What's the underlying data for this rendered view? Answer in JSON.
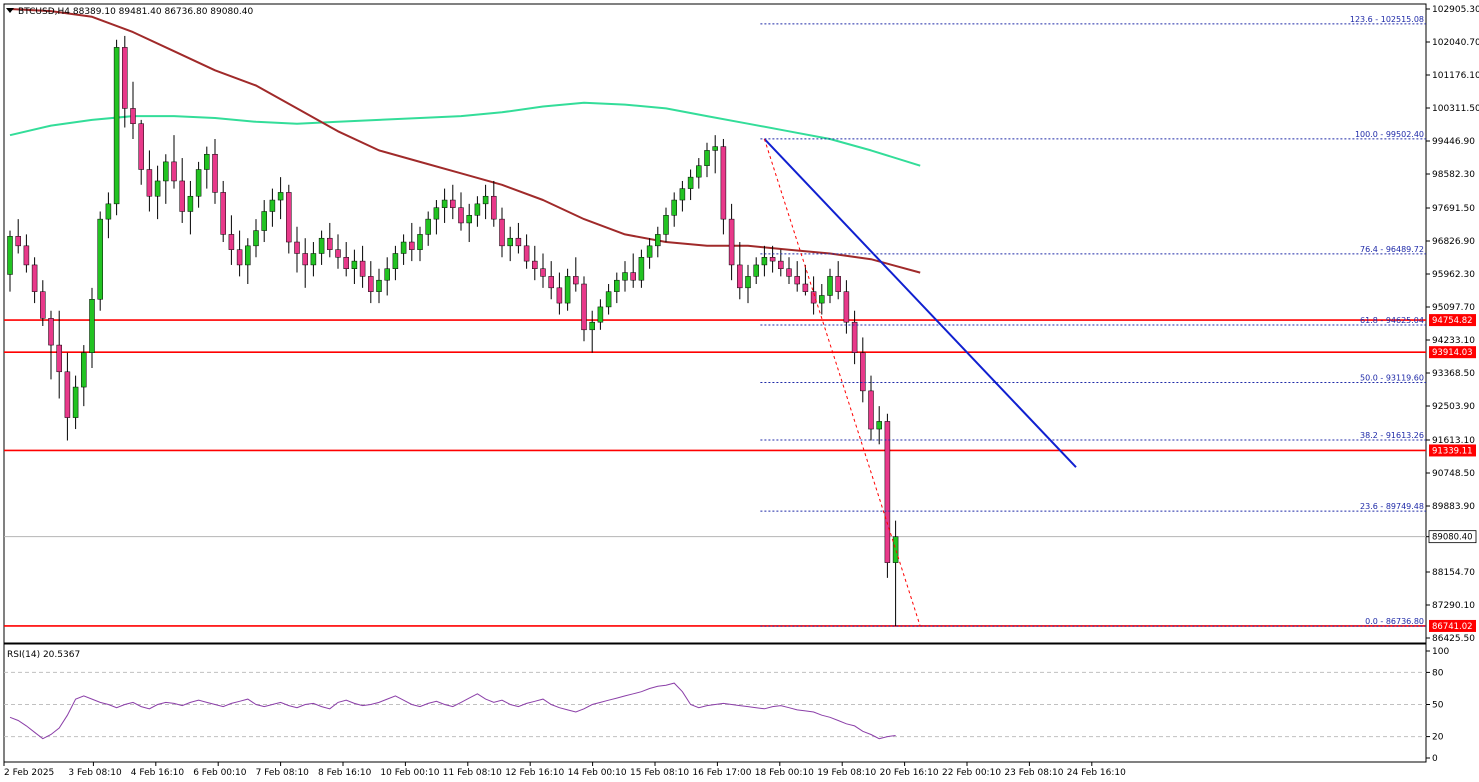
{
  "header": {
    "title": "BTCUSD,H4  88389.10 89481.40 86736.80 89080.40"
  },
  "rsi_header": {
    "title": "RSI(14) 20.5367"
  },
  "colors": {
    "bull": "#22c322",
    "bear": "#e8398a",
    "wick": "#000000",
    "ma_short": "#a02a2a",
    "ma_long": "#33dd99",
    "support": "#ff0000",
    "trend": "#1020d0",
    "fib": "#1f2aa8",
    "rsi": "#8b3fa8"
  },
  "chart_data": [
    {
      "type": "candlestick",
      "symbol": "BTCUSD",
      "timeframe": "H4",
      "ylim": [
        86425.5,
        102905.3
      ],
      "y_ticks": [
        "102905.30",
        "102040.70",
        "101176.10",
        "100311.50",
        "99446.90",
        "98582.30",
        "97691.50",
        "96826.90",
        "95962.30",
        "95097.70",
        "94233.10",
        "93368.50",
        "92503.90",
        "91613.10",
        "90748.50",
        "89883.90",
        "89080.40",
        "88154.70",
        "87290.10",
        "86425.50"
      ],
      "x_ticks": [
        "2 Feb 2025",
        "3 Feb 08:10",
        "4 Feb 16:10",
        "6 Feb 00:10",
        "7 Feb 08:10",
        "8 Feb 16:10",
        "10 Feb 00:10",
        "11 Feb 08:10",
        "12 Feb 16:10",
        "14 Feb 00:10",
        "15 Feb 08:10",
        "16 Feb 17:00",
        "18 Feb 00:10",
        "19 Feb 08:10",
        "20 Feb 16:10",
        "22 Feb 00:10",
        "23 Feb 08:10",
        "24 Feb 16:10"
      ],
      "current_price": "89080.40",
      "support_levels": [
        {
          "value": 94754.82,
          "label": "94754.82"
        },
        {
          "value": 93914.03,
          "label": "93914.03"
        },
        {
          "value": 91339.11,
          "label": "91339.11"
        },
        {
          "value": 86741.02,
          "label": "86741.02"
        }
      ],
      "fib_levels": [
        {
          "value": 102515.08,
          "label": "123.6 - 102515.08"
        },
        {
          "value": 99502.4,
          "label": "100.0 - 99502.40"
        },
        {
          "value": 96489.72,
          "label": "76.4 - 96489.72"
        },
        {
          "value": 94625.04,
          "label": "61.8 - 94625.04"
        },
        {
          "value": 93119.6,
          "label": "50.0 - 93119.60"
        },
        {
          "value": 91613.26,
          "label": "38.2 - 91613.26"
        },
        {
          "value": 89749.48,
          "label": "23.6 - 89749.48"
        },
        {
          "value": 86736.8,
          "label": "0.0 - 86736.80"
        }
      ],
      "candles": [
        [
          95950,
          97100,
          95500,
          96950
        ],
        [
          96950,
          97400,
          96500,
          96700
        ],
        [
          96700,
          97000,
          96000,
          96200
        ],
        [
          96200,
          96400,
          95200,
          95500
        ],
        [
          95500,
          95800,
          94600,
          94800
        ],
        [
          94800,
          95000,
          93200,
          94100
        ],
        [
          94100,
          95000,
          92700,
          93400
        ],
        [
          93400,
          93900,
          91600,
          92200
        ],
        [
          92200,
          93300,
          91900,
          93000
        ],
        [
          93000,
          94100,
          92500,
          93900
        ],
        [
          93900,
          95600,
          93500,
          95300
        ],
        [
          95300,
          97600,
          95000,
          97400
        ],
        [
          97400,
          98100,
          96900,
          97800
        ],
        [
          97800,
          102100,
          97500,
          101900
        ],
        [
          101900,
          102200,
          99800,
          100300
        ],
        [
          100300,
          101000,
          99500,
          99900
        ],
        [
          99900,
          100000,
          98300,
          98700
        ],
        [
          98700,
          99200,
          97600,
          98000
        ],
        [
          98000,
          98800,
          97400,
          98400
        ],
        [
          98400,
          99100,
          97800,
          98900
        ],
        [
          98900,
          99600,
          98200,
          98400
        ],
        [
          98400,
          99000,
          97300,
          97600
        ],
        [
          97600,
          98400,
          97000,
          98000
        ],
        [
          98000,
          98900,
          97700,
          98700
        ],
        [
          98700,
          99300,
          98200,
          99100
        ],
        [
          99100,
          99500,
          97800,
          98100
        ],
        [
          98100,
          98400,
          96800,
          97000
        ],
        [
          97000,
          97500,
          96200,
          96600
        ],
        [
          96600,
          97100,
          95900,
          96200
        ],
        [
          96200,
          96900,
          95700,
          96700
        ],
        [
          96700,
          97400,
          96400,
          97100
        ],
        [
          97100,
          97900,
          96800,
          97600
        ],
        [
          97600,
          98200,
          97200,
          97900
        ],
        [
          97900,
          98500,
          97400,
          98100
        ],
        [
          98100,
          98300,
          96500,
          96800
        ],
        [
          96800,
          97200,
          96000,
          96500
        ],
        [
          96500,
          96900,
          95600,
          96200
        ],
        [
          96200,
          96800,
          95900,
          96500
        ],
        [
          96500,
          97100,
          96200,
          96900
        ],
        [
          96900,
          97300,
          96400,
          96600
        ],
        [
          96600,
          97000,
          96100,
          96400
        ],
        [
          96400,
          96800,
          95900,
          96100
        ],
        [
          96100,
          96600,
          95700,
          96300
        ],
        [
          96300,
          96700,
          95600,
          95900
        ],
        [
          95900,
          96300,
          95200,
          95500
        ],
        [
          95500,
          96100,
          95200,
          95800
        ],
        [
          95800,
          96400,
          95400,
          96100
        ],
        [
          96100,
          96700,
          95800,
          96500
        ],
        [
          96500,
          97000,
          96200,
          96800
        ],
        [
          96800,
          97300,
          96300,
          96600
        ],
        [
          96600,
          97200,
          96300,
          97000
        ],
        [
          97000,
          97600,
          96700,
          97400
        ],
        [
          97400,
          97900,
          97000,
          97700
        ],
        [
          97700,
          98200,
          97300,
          97900
        ],
        [
          97900,
          98300,
          97400,
          97700
        ],
        [
          97700,
          98100,
          97100,
          97300
        ],
        [
          97300,
          97800,
          96800,
          97500
        ],
        [
          97500,
          98000,
          97200,
          97800
        ],
        [
          97800,
          98300,
          97400,
          98000
        ],
        [
          98000,
          98400,
          97200,
          97400
        ],
        [
          97400,
          97700,
          96400,
          96700
        ],
        [
          96700,
          97200,
          96300,
          96900
        ],
        [
          96900,
          97300,
          96500,
          96700
        ],
        [
          96700,
          97000,
          96100,
          96300
        ],
        [
          96300,
          96700,
          95800,
          96100
        ],
        [
          96100,
          96500,
          95600,
          95900
        ],
        [
          95900,
          96300,
          95300,
          95600
        ],
        [
          95600,
          96000,
          94900,
          95200
        ],
        [
          95200,
          96100,
          95000,
          95900
        ],
        [
          95900,
          96400,
          95500,
          95700
        ],
        [
          95700,
          95900,
          94200,
          94500
        ],
        [
          94500,
          95000,
          93900,
          94700
        ],
        [
          94700,
          95300,
          94500,
          95100
        ],
        [
          95100,
          95700,
          94900,
          95500
        ],
        [
          95500,
          96000,
          95200,
          95800
        ],
        [
          95800,
          96300,
          95500,
          96000
        ],
        [
          96000,
          96500,
          95600,
          95800
        ],
        [
          95800,
          96600,
          95600,
          96400
        ],
        [
          96400,
          96900,
          96100,
          96700
        ],
        [
          96700,
          97200,
          96400,
          97000
        ],
        [
          97000,
          97700,
          96800,
          97500
        ],
        [
          97500,
          98100,
          97200,
          97900
        ],
        [
          97900,
          98400,
          97600,
          98200
        ],
        [
          98200,
          98700,
          97900,
          98500
        ],
        [
          98500,
          99000,
          98200,
          98800
        ],
        [
          98800,
          99400,
          98500,
          99200
        ],
        [
          99200,
          99600,
          98600,
          99300
        ],
        [
          99300,
          99500,
          97000,
          97400
        ],
        [
          97400,
          97800,
          95800,
          96200
        ],
        [
          96200,
          96800,
          95300,
          95600
        ],
        [
          95600,
          96200,
          95200,
          95900
        ],
        [
          95900,
          96400,
          95700,
          96200
        ],
        [
          96200,
          96700,
          95900,
          96400
        ],
        [
          96400,
          96700,
          96000,
          96300
        ],
        [
          96300,
          96600,
          95900,
          96100
        ],
        [
          96100,
          96400,
          95700,
          95900
        ],
        [
          95900,
          96300,
          95500,
          95700
        ],
        [
          95700,
          96200,
          95400,
          95500
        ],
        [
          95500,
          95900,
          94900,
          95200
        ],
        [
          95200,
          95700,
          94900,
          95400
        ],
        [
          95400,
          96100,
          95200,
          95900
        ],
        [
          95900,
          96300,
          95300,
          95500
        ],
        [
          95500,
          95800,
          94400,
          94700
        ],
        [
          94700,
          95000,
          93600,
          93900
        ],
        [
          93900,
          94300,
          92600,
          92900
        ],
        [
          92900,
          93300,
          91600,
          91900
        ],
        [
          91900,
          92500,
          91500,
          92100
        ],
        [
          92100,
          92300,
          88000,
          88400
        ],
        [
          88400,
          89500,
          86736.8,
          89080
        ]
      ],
      "ma_short": {
        "x": [
          0,
          5,
          10,
          15,
          20,
          25,
          30,
          35,
          40,
          45,
          50,
          55,
          60,
          65,
          70,
          75,
          80,
          85,
          90,
          95,
          100,
          105,
          111
        ],
        "y": [
          102905,
          102850,
          102700,
          102300,
          101800,
          101300,
          100900,
          100300,
          99700,
          99200,
          98900,
          98600,
          98300,
          97900,
          97400,
          97000,
          96800,
          96700,
          96700,
          96600,
          96500,
          96350,
          96000
        ]
      },
      "ma_long": {
        "x": [
          0,
          5,
          10,
          15,
          20,
          25,
          30,
          35,
          40,
          45,
          50,
          55,
          60,
          65,
          70,
          75,
          80,
          85,
          90,
          95,
          100,
          105,
          111
        ],
        "y": [
          99600,
          99850,
          100000,
          100100,
          100100,
          100050,
          99950,
          99900,
          99950,
          100000,
          100050,
          100100,
          100200,
          100350,
          100450,
          100400,
          100300,
          100100,
          99900,
          99700,
          99500,
          99200,
          98800
        ]
      },
      "trendline": {
        "x1": 92,
        "y1": 99500,
        "x2": 130,
        "y2": 90900
      },
      "fib_diagonal": {
        "x1": 92,
        "y1": 99502.4,
        "x2": 111,
        "y2": 86736.8
      }
    },
    {
      "type": "line",
      "name": "RSI(14)",
      "ylim": [
        0,
        100
      ],
      "y_ticks": [
        "100",
        "80",
        "50",
        "20",
        "0"
      ],
      "levels": [
        80,
        50,
        20
      ],
      "values": [
        38,
        35,
        30,
        24,
        18,
        22,
        28,
        40,
        55,
        58,
        55,
        52,
        50,
        47,
        50,
        52,
        48,
        46,
        50,
        52,
        51,
        49,
        52,
        54,
        52,
        50,
        48,
        51,
        53,
        55,
        50,
        48,
        50,
        52,
        49,
        47,
        50,
        51,
        48,
        46,
        52,
        54,
        51,
        49,
        50,
        52,
        55,
        58,
        54,
        50,
        48,
        51,
        53,
        50,
        48,
        52,
        56,
        60,
        55,
        52,
        54,
        50,
        48,
        51,
        53,
        55,
        50,
        47,
        45,
        43,
        46,
        50,
        52,
        54,
        56,
        58,
        60,
        62,
        65,
        67,
        68,
        70,
        62,
        50,
        47,
        49,
        50,
        51,
        50,
        49,
        48,
        47,
        46,
        48,
        49,
        47,
        45,
        44,
        43,
        40,
        38,
        35,
        32,
        30,
        25,
        22,
        18,
        20,
        21
      ]
    }
  ]
}
